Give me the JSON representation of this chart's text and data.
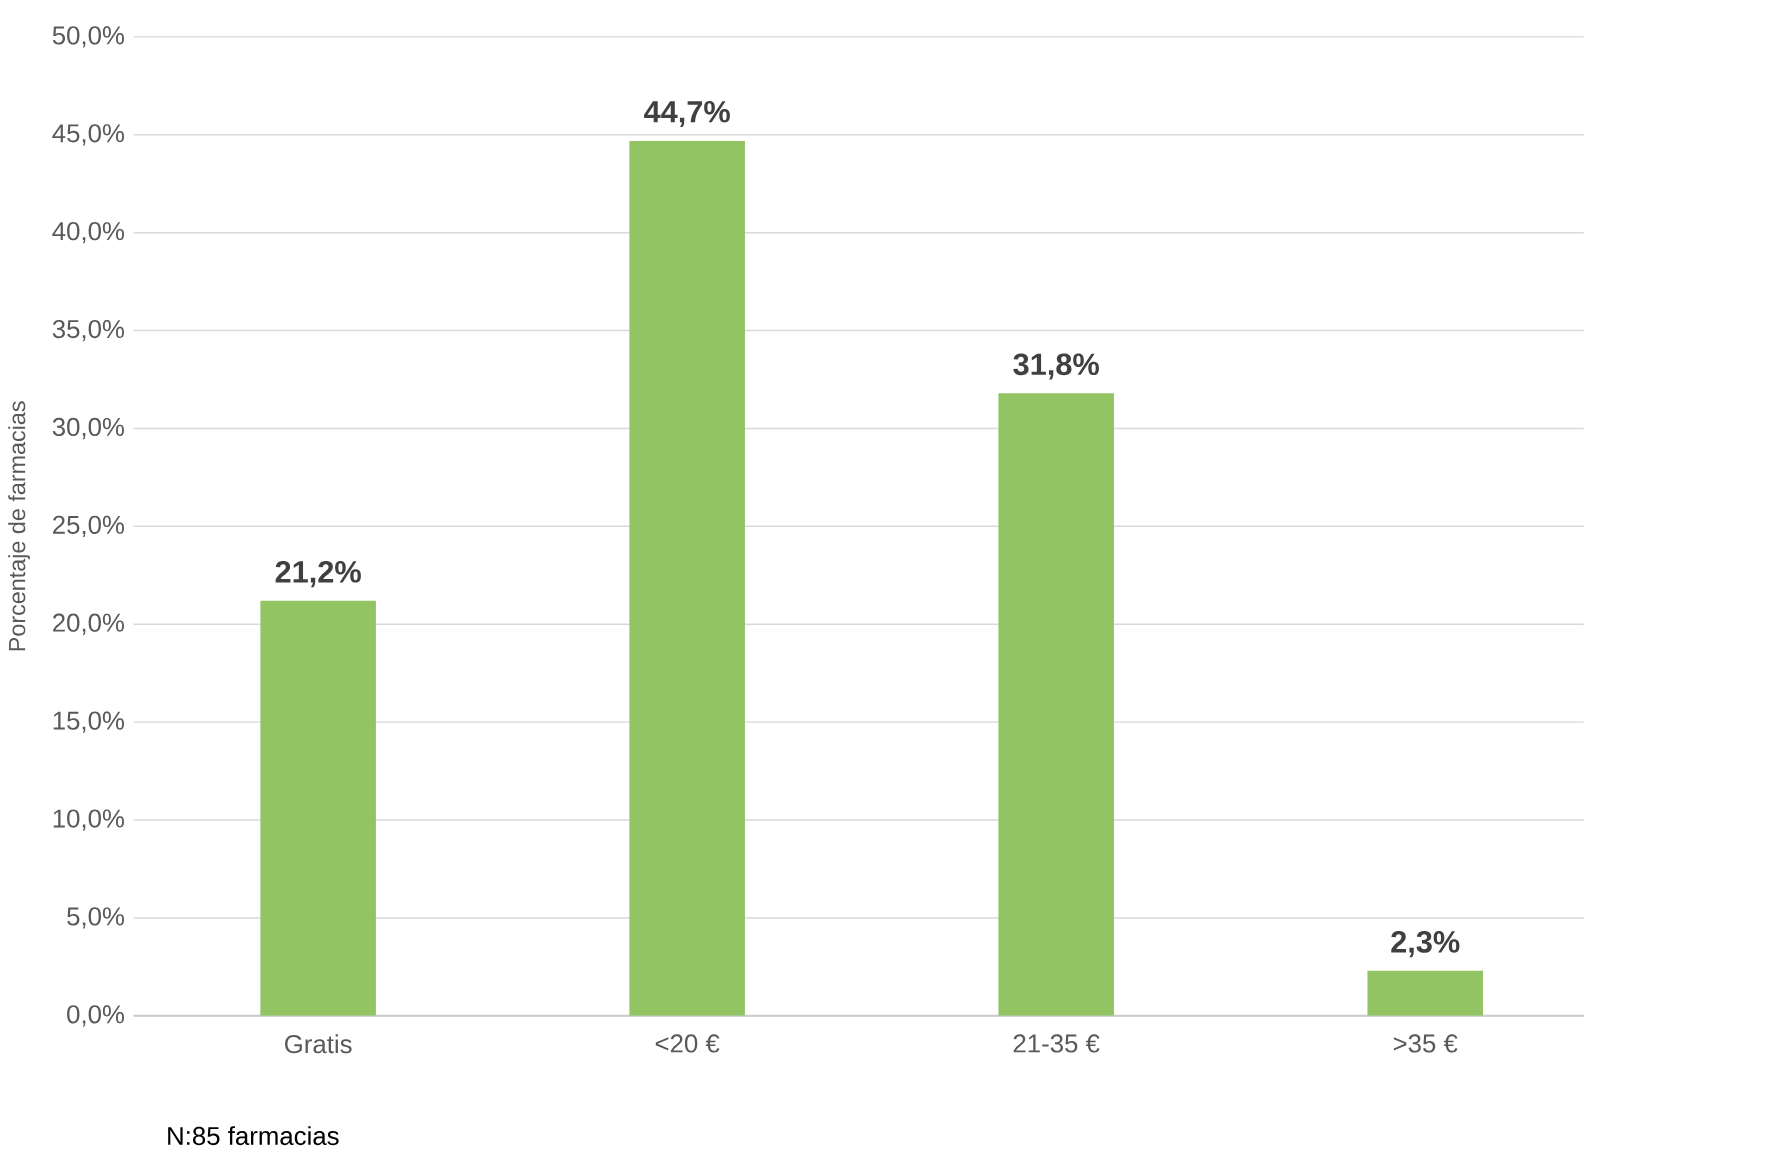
{
  "chart_data": {
    "type": "bar",
    "ylabel": "Porcentaje de farmacias",
    "categories": [
      "Gratis",
      "<20 €",
      "21-35 €",
      ">35 €"
    ],
    "values": [
      21.2,
      44.7,
      31.8,
      2.3
    ],
    "value_labels": [
      "21,2%",
      "44,7%",
      "31,8%",
      "2,3%"
    ],
    "color": "#92c464",
    "ylim": [
      0,
      50
    ],
    "yticks": [
      {
        "value": 0,
        "label": "0,0%"
      },
      {
        "value": 5,
        "label": "5,0%"
      },
      {
        "value": 10,
        "label": "10,0%"
      },
      {
        "value": 15,
        "label": "15,0%"
      },
      {
        "value": 20,
        "label": "20,0%"
      },
      {
        "value": 25,
        "label": "25,0%"
      },
      {
        "value": 30,
        "label": "30,0%"
      },
      {
        "value": 35,
        "label": "35,0%"
      },
      {
        "value": 40,
        "label": "40,0%"
      },
      {
        "value": 45,
        "label": "45,0%"
      },
      {
        "value": 50,
        "label": "50,0%"
      }
    ],
    "grid": "y",
    "annotations": [
      "N:85 farmacias"
    ]
  }
}
